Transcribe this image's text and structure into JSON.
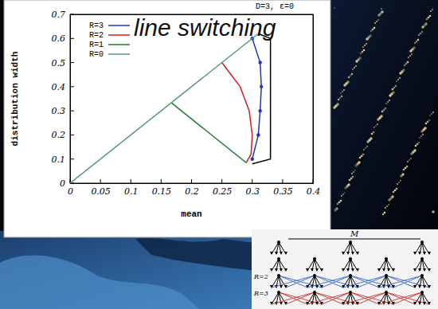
{
  "chart_data": {
    "type": "line",
    "title": "D=3, ε=0",
    "annotations": [
      "line switching"
    ],
    "x_label": "mean",
    "y_label": "distribution width",
    "xlim": [
      0,
      0.4
    ],
    "xticks": [
      0,
      0.05,
      0.1,
      0.15,
      0.2,
      0.25,
      0.3,
      0.35,
      0.4
    ],
    "ylim": [
      0,
      0.7
    ],
    "yticks": [
      0,
      0.1,
      0.2,
      0.3,
      0.4,
      0.5,
      0.6,
      0.7
    ],
    "legend": "upper left",
    "series": [
      {
        "name": "R=3",
        "color": "#2233c0",
        "marker": "circle",
        "line_style": "solid",
        "x": [
          0.3,
          0.313,
          0.315,
          0.313,
          0.31,
          0.3
        ],
        "values": [
          0.6,
          0.5,
          0.4,
          0.3,
          0.2,
          0.1
        ]
      },
      {
        "name": "R=2",
        "color": "#d41c1c",
        "marker": "none",
        "line_style": "solid",
        "x": [
          0.25,
          0.28,
          0.295,
          0.3,
          0.298,
          0.29
        ],
        "values": [
          0.5,
          0.4,
          0.3,
          0.2,
          0.12,
          0.085
        ]
      },
      {
        "name": "R=1",
        "color": "#1a7a30",
        "marker": "none",
        "line_style": "solid",
        "x": [
          0.167,
          0.29
        ],
        "values": [
          0.333,
          0.085
        ]
      },
      {
        "name": "R=0",
        "color": "#5a9a7a",
        "marker": "none",
        "line_style": "solid",
        "x": [
          0,
          0.31
        ],
        "values": [
          0,
          0.62
        ]
      },
      {
        "color": "#000000",
        "marker": "none",
        "line_style": "solid",
        "x": [
          0.31,
          0.33,
          0.33,
          0.3
        ],
        "values": [
          0.62,
          0.6,
          0.1,
          0.08
        ]
      }
    ]
  },
  "diagram": {
    "top_label": "M",
    "row_labels": [
      "R=2",
      "R=3"
    ]
  }
}
